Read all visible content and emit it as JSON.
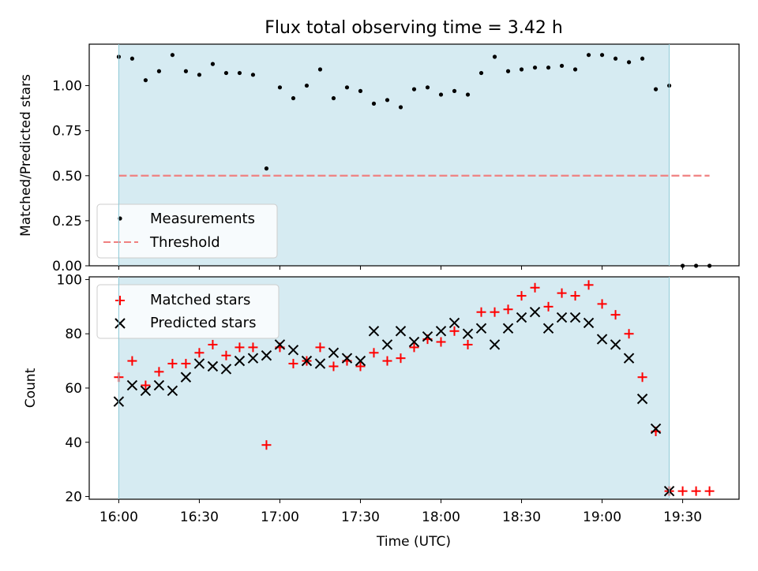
{
  "chart_data": [
    {
      "type": "scatter",
      "panel": "top",
      "title": "Flux total observing time = 3.42 h",
      "ylabel": "Matched/Predicted stars",
      "xlabel": "",
      "x_tick_labels": [
        "16:00",
        "16:30",
        "17:00",
        "17:30",
        "18:00",
        "18:30",
        "19:00",
        "19:30"
      ],
      "y_ticks": [
        0.0,
        0.25,
        0.5,
        0.75,
        1.0
      ],
      "y_tick_labels": [
        "0.00",
        "0.25",
        "0.50",
        "0.75",
        "1.00"
      ],
      "ylim": [
        0.0,
        1.23
      ],
      "xlim": [
        "15:49",
        "19:51"
      ],
      "grid": false,
      "legend_position": "lower-left",
      "shaded_region": {
        "x_start": "16:00",
        "x_end": "19:25",
        "color": "#add8e6"
      },
      "threshold": {
        "name": "Threshold",
        "value": 0.5,
        "x_start": "16:00",
        "x_end": "19:40",
        "color": "#f08080"
      },
      "series": [
        {
          "name": "Measurements",
          "marker": "dot",
          "color": "#000000",
          "x": [
            "16:00",
            "16:05",
            "16:10",
            "16:15",
            "16:20",
            "16:25",
            "16:30",
            "16:35",
            "16:40",
            "16:45",
            "16:50",
            "16:55",
            "17:00",
            "17:05",
            "17:10",
            "17:15",
            "17:20",
            "17:25",
            "17:30",
            "17:35",
            "17:40",
            "17:45",
            "17:50",
            "17:55",
            "18:00",
            "18:05",
            "18:10",
            "18:15",
            "18:20",
            "18:25",
            "18:30",
            "18:35",
            "18:40",
            "18:45",
            "18:50",
            "18:55",
            "19:00",
            "19:05",
            "19:10",
            "19:15",
            "19:20",
            "19:25",
            "19:30",
            "19:35",
            "19:40"
          ],
          "y": [
            1.16,
            1.15,
            1.03,
            1.08,
            1.17,
            1.08,
            1.06,
            1.12,
            1.07,
            1.07,
            1.06,
            0.54,
            0.99,
            0.93,
            1.0,
            1.09,
            0.93,
            0.99,
            0.97,
            0.9,
            0.92,
            0.88,
            0.98,
            0.99,
            0.95,
            0.97,
            0.95,
            1.07,
            1.16,
            1.08,
            1.09,
            1.1,
            1.1,
            1.11,
            1.09,
            1.17,
            1.17,
            1.15,
            1.13,
            1.15,
            0.98,
            1.0,
            0.0,
            0.0,
            0.0
          ]
        }
      ]
    },
    {
      "type": "scatter",
      "panel": "bottom",
      "title": "",
      "xlabel": "Time (UTC)",
      "ylabel": "Count",
      "x_tick_labels": [
        "16:00",
        "16:30",
        "17:00",
        "17:30",
        "18:00",
        "18:30",
        "19:00",
        "19:30"
      ],
      "y_ticks": [
        20,
        40,
        60,
        80,
        100
      ],
      "y_tick_labels": [
        "20",
        "40",
        "60",
        "80",
        "100"
      ],
      "ylim": [
        19,
        101
      ],
      "xlim": [
        "15:49",
        "19:51"
      ],
      "grid": false,
      "legend_position": "upper-left",
      "shaded_region": {
        "x_start": "16:00",
        "x_end": "19:25",
        "color": "#add8e6"
      },
      "series": [
        {
          "name": "Matched stars",
          "marker": "plus",
          "color": "#ff0000",
          "x": [
            "16:00",
            "16:05",
            "16:10",
            "16:15",
            "16:20",
            "16:25",
            "16:30",
            "16:35",
            "16:40",
            "16:45",
            "16:50",
            "16:55",
            "17:00",
            "17:05",
            "17:10",
            "17:15",
            "17:20",
            "17:25",
            "17:30",
            "17:35",
            "17:40",
            "17:45",
            "17:50",
            "17:55",
            "18:00",
            "18:05",
            "18:10",
            "18:15",
            "18:20",
            "18:25",
            "18:30",
            "18:35",
            "18:40",
            "18:45",
            "18:50",
            "18:55",
            "19:00",
            "19:05",
            "19:10",
            "19:15",
            "19:20",
            "19:25",
            "19:30",
            "19:35",
            "19:40"
          ],
          "y": [
            64,
            70,
            61,
            66,
            69,
            69,
            73,
            76,
            72,
            75,
            75,
            39,
            75,
            69,
            70,
            75,
            68,
            70,
            68,
            73,
            70,
            71,
            75,
            78,
            77,
            81,
            76,
            88,
            88,
            89,
            94,
            97,
            90,
            95,
            94,
            98,
            91,
            87,
            80,
            64,
            44,
            22,
            22,
            22,
            22
          ]
        },
        {
          "name": "Predicted stars",
          "marker": "x",
          "color": "#000000",
          "x": [
            "16:00",
            "16:05",
            "16:10",
            "16:15",
            "16:20",
            "16:25",
            "16:30",
            "16:35",
            "16:40",
            "16:45",
            "16:50",
            "16:55",
            "17:00",
            "17:05",
            "17:10",
            "17:15",
            "17:20",
            "17:25",
            "17:30",
            "17:35",
            "17:40",
            "17:45",
            "17:50",
            "17:55",
            "18:00",
            "18:05",
            "18:10",
            "18:15",
            "18:20",
            "18:25",
            "18:30",
            "18:35",
            "18:40",
            "18:45",
            "18:50",
            "18:55",
            "19:00",
            "19:05",
            "19:10",
            "19:15",
            "19:20",
            "19:25"
          ],
          "y": [
            55,
            61,
            59,
            61,
            59,
            64,
            69,
            68,
            67,
            70,
            71,
            72,
            76,
            74,
            70,
            69,
            73,
            71,
            70,
            81,
            76,
            81,
            77,
            79,
            81,
            84,
            80,
            82,
            76,
            82,
            86,
            88,
            82,
            86,
            86,
            84,
            78,
            76,
            71,
            56,
            45,
            22
          ]
        }
      ]
    }
  ]
}
